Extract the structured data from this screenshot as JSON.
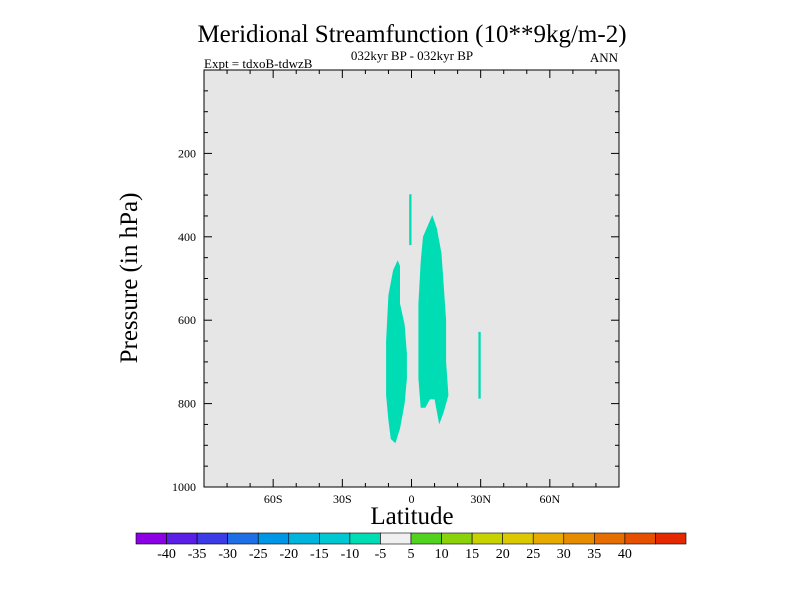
{
  "chart_data": {
    "type": "contour",
    "title": "Meridional Streamfunction (10**9kg/m-2)",
    "subtitle_left": "Expt = tdxoB-tdwzB",
    "subtitle_center": "032kyr BP - 032kyr BP",
    "subtitle_right": "ANN",
    "xlabel": "Latitude",
    "ylabel": "Pressure (in hPa)",
    "xlim": [
      -90,
      90
    ],
    "ylim": [
      1000,
      0
    ],
    "x_ticks": [
      {
        "value": -60,
        "label": "60S"
      },
      {
        "value": -30,
        "label": "30S"
      },
      {
        "value": 0,
        "label": "0"
      },
      {
        "value": 30,
        "label": "30N"
      },
      {
        "value": 60,
        "label": "60N"
      }
    ],
    "y_ticks": [
      {
        "value": 200,
        "label": "200"
      },
      {
        "value": 400,
        "label": "400"
      },
      {
        "value": 600,
        "label": "600"
      },
      {
        "value": 800,
        "label": "800"
      },
      {
        "value": 1000,
        "label": "1000"
      }
    ],
    "background_color": "#e6e6e6",
    "regions": [
      {
        "level": "-10 to -5",
        "color": "#00dcb4",
        "polygon": [
          [
            -1,
            298
          ],
          [
            0,
            298
          ],
          [
            0,
            420
          ],
          [
            -1,
            420
          ]
        ]
      },
      {
        "level": "-10 to -5",
        "color": "#00dcb4",
        "polygon": [
          [
            -6,
            456
          ],
          [
            -5,
            470
          ],
          [
            -5,
            560
          ],
          [
            -3,
            610
          ],
          [
            -2,
            680
          ],
          [
            -2,
            740
          ],
          [
            -3,
            800
          ],
          [
            -5,
            860
          ],
          [
            -7,
            895
          ],
          [
            -9,
            885
          ],
          [
            -10,
            840
          ],
          [
            -11,
            780
          ],
          [
            -11,
            650
          ],
          [
            -10,
            540
          ],
          [
            -8,
            480
          ]
        ]
      },
      {
        "level": "-10 to -5",
        "color": "#00dcb4",
        "polygon": [
          [
            9,
            348
          ],
          [
            11,
            380
          ],
          [
            13,
            440
          ],
          [
            14,
            520
          ],
          [
            15,
            600
          ],
          [
            15,
            700
          ],
          [
            16,
            780
          ],
          [
            14,
            820
          ],
          [
            12,
            850
          ],
          [
            10,
            790
          ],
          [
            8,
            790
          ],
          [
            6,
            810
          ],
          [
            4,
            810
          ],
          [
            3,
            740
          ],
          [
            3,
            560
          ],
          [
            4,
            460
          ],
          [
            5,
            400
          ]
        ]
      },
      {
        "level": "-10 to -5",
        "color": "#00dcb4",
        "polygon": [
          [
            29,
            628
          ],
          [
            30,
            628
          ],
          [
            30,
            788
          ],
          [
            29,
            788
          ]
        ]
      }
    ],
    "colorbar": {
      "colors": [
        "#8c00e6",
        "#5a1ee6",
        "#3c3ce6",
        "#1e6ee6",
        "#0096e6",
        "#00b4dc",
        "#00c8d2",
        "#00dcb4",
        "#f0f0f0",
        "#50d21e",
        "#8cd20a",
        "#c8d200",
        "#dcc800",
        "#e6aa00",
        "#e68c00",
        "#e66e00",
        "#e65000",
        "#e62800"
      ],
      "labels": [
        "-40",
        "-35",
        "-30",
        "-25",
        "-20",
        "-15",
        "-10",
        "-5",
        "5",
        "10",
        "15",
        "20",
        "25",
        "30",
        "35",
        "40"
      ]
    }
  }
}
